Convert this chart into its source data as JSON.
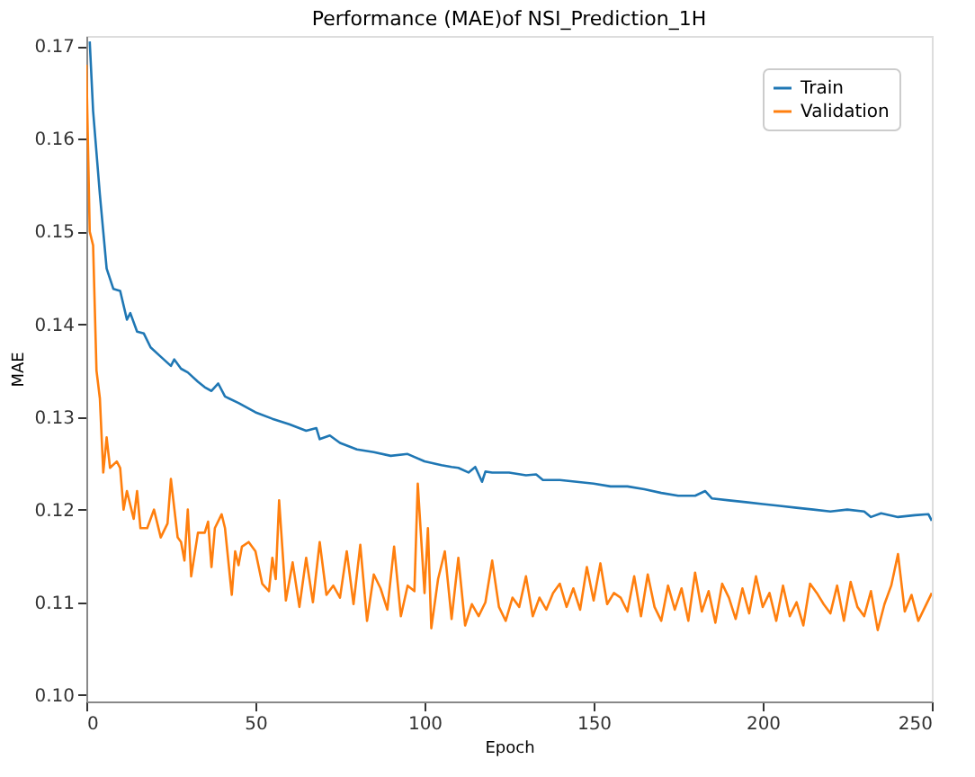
{
  "chart_data": {
    "type": "line",
    "title": "Performance (MAE)of NSI_Prediction_1H",
    "xlabel": "Epoch",
    "ylabel": "MAE",
    "xlim": [
      0,
      250
    ],
    "ylim": [
      0.0993,
      0.1711
    ],
    "xticks": [
      0,
      50,
      100,
      150,
      200,
      250
    ],
    "yticks": [
      {
        "value": 0.1,
        "label": "0.10"
      },
      0.11,
      0.12,
      0.13,
      0.14,
      0.15,
      0.16,
      0.17
    ],
    "grid": false,
    "legend": "top right",
    "line_style": "solid",
    "marker": "none",
    "series": [
      {
        "name": "Train",
        "color": "#1f77b4",
        "x": [
          1,
          2,
          4,
          6,
          8,
          10,
          12,
          13,
          15,
          17,
          19,
          22,
          25,
          26,
          28,
          30,
          33,
          35,
          37,
          39,
          41,
          45,
          50,
          55,
          60,
          65,
          68,
          69,
          72,
          75,
          80,
          85,
          90,
          95,
          100,
          105,
          108,
          110,
          113,
          115,
          117,
          118,
          120,
          125,
          130,
          133,
          135,
          140,
          145,
          150,
          155,
          160,
          165,
          170,
          175,
          180,
          183,
          185,
          190,
          195,
          200,
          205,
          210,
          215,
          220,
          225,
          230,
          232,
          235,
          240,
          245,
          249,
          250
        ],
        "values": [
          0.1705,
          0.163,
          0.154,
          0.146,
          0.1438,
          0.1436,
          0.1405,
          0.1412,
          0.1392,
          0.139,
          0.1375,
          0.1365,
          0.1355,
          0.1362,
          0.1352,
          0.1348,
          0.1338,
          0.1332,
          0.1328,
          0.1336,
          0.1322,
          0.1315,
          0.1305,
          0.1298,
          0.1292,
          0.1285,
          0.1288,
          0.1276,
          0.128,
          0.1272,
          0.1265,
          0.1262,
          0.1258,
          0.126,
          0.1252,
          0.1248,
          0.1246,
          0.1245,
          0.124,
          0.1246,
          0.123,
          0.1241,
          0.124,
          0.124,
          0.1237,
          0.1238,
          0.1232,
          0.1232,
          0.123,
          0.1228,
          0.1225,
          0.1225,
          0.1222,
          0.1218,
          0.1215,
          0.1215,
          0.122,
          0.1212,
          0.121,
          0.1208,
          0.1206,
          0.1204,
          0.1202,
          0.12,
          0.1198,
          0.12,
          0.1198,
          0.1192,
          0.1196,
          0.1192,
          0.1194,
          0.1195,
          0.1188
        ]
      },
      {
        "name": "Validation",
        "color": "#ff7f0e",
        "x": [
          0,
          1,
          2,
          3,
          4,
          5,
          6,
          7,
          9,
          10,
          11,
          12,
          14,
          15,
          16,
          18,
          20,
          22,
          24,
          25,
          27,
          28,
          29,
          30,
          31,
          33,
          35,
          36,
          37,
          38,
          40,
          41,
          43,
          44,
          45,
          46,
          48,
          50,
          52,
          54,
          55,
          56,
          57,
          59,
          61,
          63,
          65,
          67,
          69,
          71,
          73,
          75,
          77,
          79,
          81,
          83,
          85,
          87,
          89,
          91,
          93,
          95,
          97,
          98,
          100,
          101,
          102,
          104,
          106,
          108,
          110,
          112,
          114,
          116,
          118,
          120,
          122,
          124,
          126,
          128,
          130,
          132,
          134,
          136,
          138,
          140,
          142,
          144,
          146,
          148,
          150,
          152,
          154,
          156,
          158,
          160,
          162,
          164,
          166,
          168,
          170,
          172,
          174,
          176,
          178,
          180,
          182,
          184,
          186,
          188,
          190,
          192,
          194,
          196,
          198,
          200,
          202,
          204,
          206,
          208,
          210,
          212,
          214,
          216,
          218,
          220,
          222,
          224,
          226,
          228,
          230,
          232,
          234,
          236,
          238,
          240,
          242,
          244,
          246,
          248,
          250
        ],
        "values": [
          0.168,
          0.15,
          0.1485,
          0.135,
          0.132,
          0.124,
          0.1278,
          0.1245,
          0.1252,
          0.1245,
          0.12,
          0.122,
          0.119,
          0.122,
          0.118,
          0.118,
          0.12,
          0.117,
          0.1185,
          0.1233,
          0.117,
          0.1165,
          0.1145,
          0.12,
          0.1128,
          0.1175,
          0.1175,
          0.1187,
          0.1138,
          0.118,
          0.1195,
          0.118,
          0.1108,
          0.1155,
          0.114,
          0.116,
          0.1165,
          0.1155,
          0.112,
          0.1112,
          0.1148,
          0.1125,
          0.121,
          0.1102,
          0.1143,
          0.1095,
          0.1148,
          0.11,
          0.1165,
          0.1108,
          0.1118,
          0.1105,
          0.1155,
          0.1098,
          0.1162,
          0.108,
          0.113,
          0.1115,
          0.1092,
          0.116,
          0.1085,
          0.1118,
          0.1112,
          0.1228,
          0.111,
          0.118,
          0.1072,
          0.1125,
          0.1155,
          0.1082,
          0.1148,
          0.1075,
          0.1098,
          0.1085,
          0.11,
          0.1145,
          0.1095,
          0.108,
          0.1105,
          0.1095,
          0.1128,
          0.1085,
          0.1105,
          0.1092,
          0.111,
          0.112,
          0.1095,
          0.1115,
          0.1092,
          0.1138,
          0.1102,
          0.1142,
          0.1098,
          0.111,
          0.1105,
          0.109,
          0.1128,
          0.1085,
          0.113,
          0.1095,
          0.108,
          0.1118,
          0.1092,
          0.1115,
          0.108,
          0.1132,
          0.109,
          0.1112,
          0.1078,
          0.112,
          0.1105,
          0.1082,
          0.1115,
          0.1088,
          0.1128,
          0.1095,
          0.111,
          0.108,
          0.1118,
          0.1085,
          0.11,
          0.1075,
          0.112,
          0.111,
          0.1098,
          0.1088,
          0.1118,
          0.108,
          0.1122,
          0.1095,
          0.1085,
          0.1112,
          0.107,
          0.1098,
          0.1118,
          0.1152,
          0.109,
          0.1108,
          0.108,
          0.1095,
          0.111
        ]
      }
    ]
  }
}
